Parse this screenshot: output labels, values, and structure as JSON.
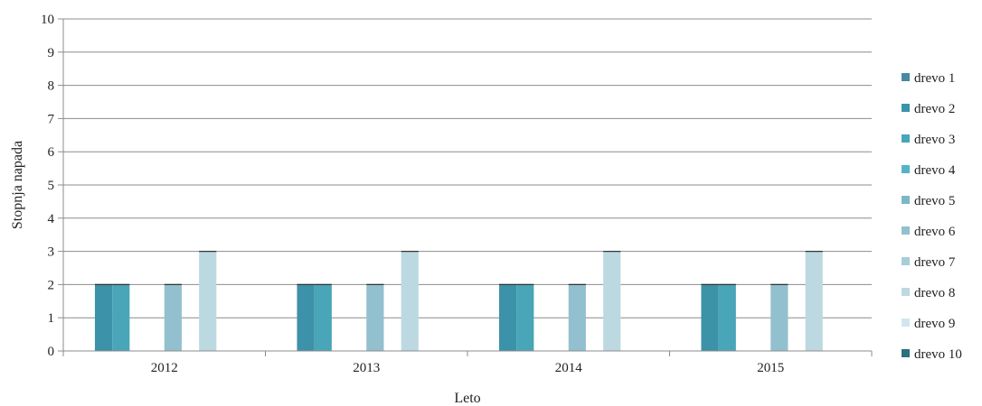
{
  "chart_data": {
    "type": "bar",
    "title": "",
    "xlabel": "Leto",
    "ylabel": "Stopnja napada",
    "ylim": [
      0,
      10
    ],
    "yticks": [
      0,
      1,
      2,
      3,
      4,
      5,
      6,
      7,
      8,
      9,
      10
    ],
    "grid": true,
    "legend_position": "right",
    "categories": [
      "2012",
      "2013",
      "2014",
      "2015"
    ],
    "series": [
      {
        "name": "drevo 1",
        "color": "#4a8aa0",
        "values": [
          0,
          0,
          0,
          0
        ]
      },
      {
        "name": "drevo 2",
        "color": "#3c92a8",
        "values": [
          2,
          2,
          2,
          2
        ]
      },
      {
        "name": "drevo 3",
        "color": "#49a5b8",
        "values": [
          2,
          2,
          2,
          2
        ]
      },
      {
        "name": "drevo 4",
        "color": "#55b2c8",
        "values": [
          0,
          0,
          0,
          0
        ]
      },
      {
        "name": "drevo 5",
        "color": "#7cb7c8",
        "values": [
          0,
          0,
          0,
          0
        ]
      },
      {
        "name": "drevo 6",
        "color": "#93c0ce",
        "values": [
          2,
          2,
          2,
          2
        ]
      },
      {
        "name": "drevo 7",
        "color": "#a9cdd8",
        "values": [
          0,
          0,
          0,
          0
        ]
      },
      {
        "name": "drevo 8",
        "color": "#bcd9e2",
        "values": [
          3,
          3,
          3,
          3
        ]
      },
      {
        "name": "drevo 9",
        "color": "#d2e6ec",
        "values": [
          0,
          0,
          0,
          0
        ]
      },
      {
        "name": "drevo 10",
        "color": "#2e6f80",
        "values": [
          0,
          0,
          0,
          0
        ]
      }
    ]
  }
}
